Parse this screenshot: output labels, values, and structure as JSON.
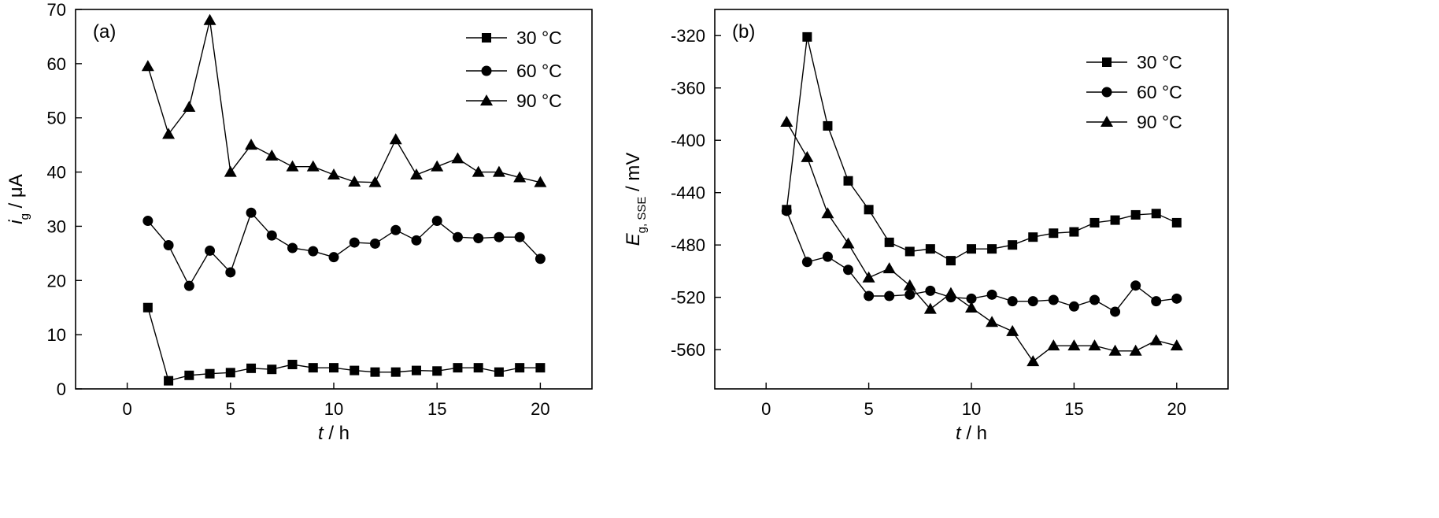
{
  "chart_data": [
    {
      "type": "line",
      "panel_label": "(a)",
      "xlabel_italic": "t",
      "xlabel_rest": " / h",
      "ylabel_italic": "i",
      "ylabel_sub": "g",
      "ylabel_rest": " / μA",
      "xlim": [
        -2.5,
        22.5
      ],
      "ylim": [
        0,
        70
      ],
      "xticks": [
        0,
        5,
        10,
        15,
        20
      ],
      "yticks": [
        0,
        10,
        20,
        30,
        40,
        50,
        60,
        70
      ],
      "legend_position": "top-right",
      "x": [
        1,
        2,
        3,
        4,
        5,
        6,
        7,
        8,
        9,
        10,
        11,
        12,
        13,
        14,
        15,
        16,
        17,
        18,
        19,
        20
      ],
      "series": [
        {
          "name": "30 °C",
          "marker": "square",
          "values": [
            15,
            1.5,
            2.5,
            2.8,
            3.0,
            3.8,
            3.6,
            4.5,
            3.9,
            3.9,
            3.4,
            3.1,
            3.1,
            3.4,
            3.3,
            3.9,
            3.9,
            3.1,
            3.9,
            3.9
          ]
        },
        {
          "name": "60 °C",
          "marker": "circle",
          "values": [
            31,
            26.5,
            19,
            25.5,
            21.5,
            32.5,
            28.3,
            26,
            25.4,
            24.3,
            27,
            26.8,
            29.3,
            27.4,
            31,
            28,
            27.8,
            28,
            28,
            24
          ]
        },
        {
          "name": "90 °C",
          "marker": "triangle",
          "values": [
            59.5,
            47,
            52,
            68,
            40,
            45,
            43,
            41,
            41,
            39.5,
            38.2,
            38.1,
            46,
            39.5,
            41,
            42.5,
            40,
            40,
            39,
            38.1
          ]
        }
      ]
    },
    {
      "type": "line",
      "panel_label": "(b)",
      "xlabel_italic": "t",
      "xlabel_rest": " / h",
      "ylabel_italic": "E",
      "ylabel_sub": "g, SSE",
      "ylabel_rest": " / mV",
      "xlim": [
        -2.5,
        22.5
      ],
      "ylim": [
        -590,
        -300
      ],
      "xticks": [
        0,
        5,
        10,
        15,
        20
      ],
      "yticks": [
        -320,
        -360,
        -400,
        -440,
        -480,
        -520,
        -560
      ],
      "legend_position": "top-right",
      "x": [
        1,
        2,
        3,
        4,
        5,
        6,
        7,
        8,
        9,
        10,
        11,
        12,
        13,
        14,
        15,
        16,
        17,
        18,
        19,
        20
      ],
      "series": [
        {
          "name": "30 °C",
          "marker": "square",
          "values": [
            -453,
            -321,
            -389,
            -431,
            -453,
            -478,
            -485,
            -483,
            -492,
            -483,
            -483,
            -480,
            -474,
            -471,
            -470,
            -463,
            -461,
            -457,
            -456,
            -463
          ]
        },
        {
          "name": "60 °C",
          "marker": "circle",
          "values": [
            -454,
            -493,
            -489,
            -499,
            -519,
            -519,
            -518,
            -515,
            -520,
            -521,
            -518,
            -523,
            -523,
            -522,
            -527,
            -522,
            -531,
            -511,
            -523,
            -521
          ]
        },
        {
          "name": "90 °C",
          "marker": "triangle",
          "values": [
            -386,
            -413,
            -456,
            -479,
            -505,
            -498,
            -511,
            -529,
            -517,
            -528,
            -539,
            -546,
            -569,
            -557,
            -557,
            -557,
            -561,
            -561,
            -553,
            -557
          ]
        }
      ]
    }
  ]
}
